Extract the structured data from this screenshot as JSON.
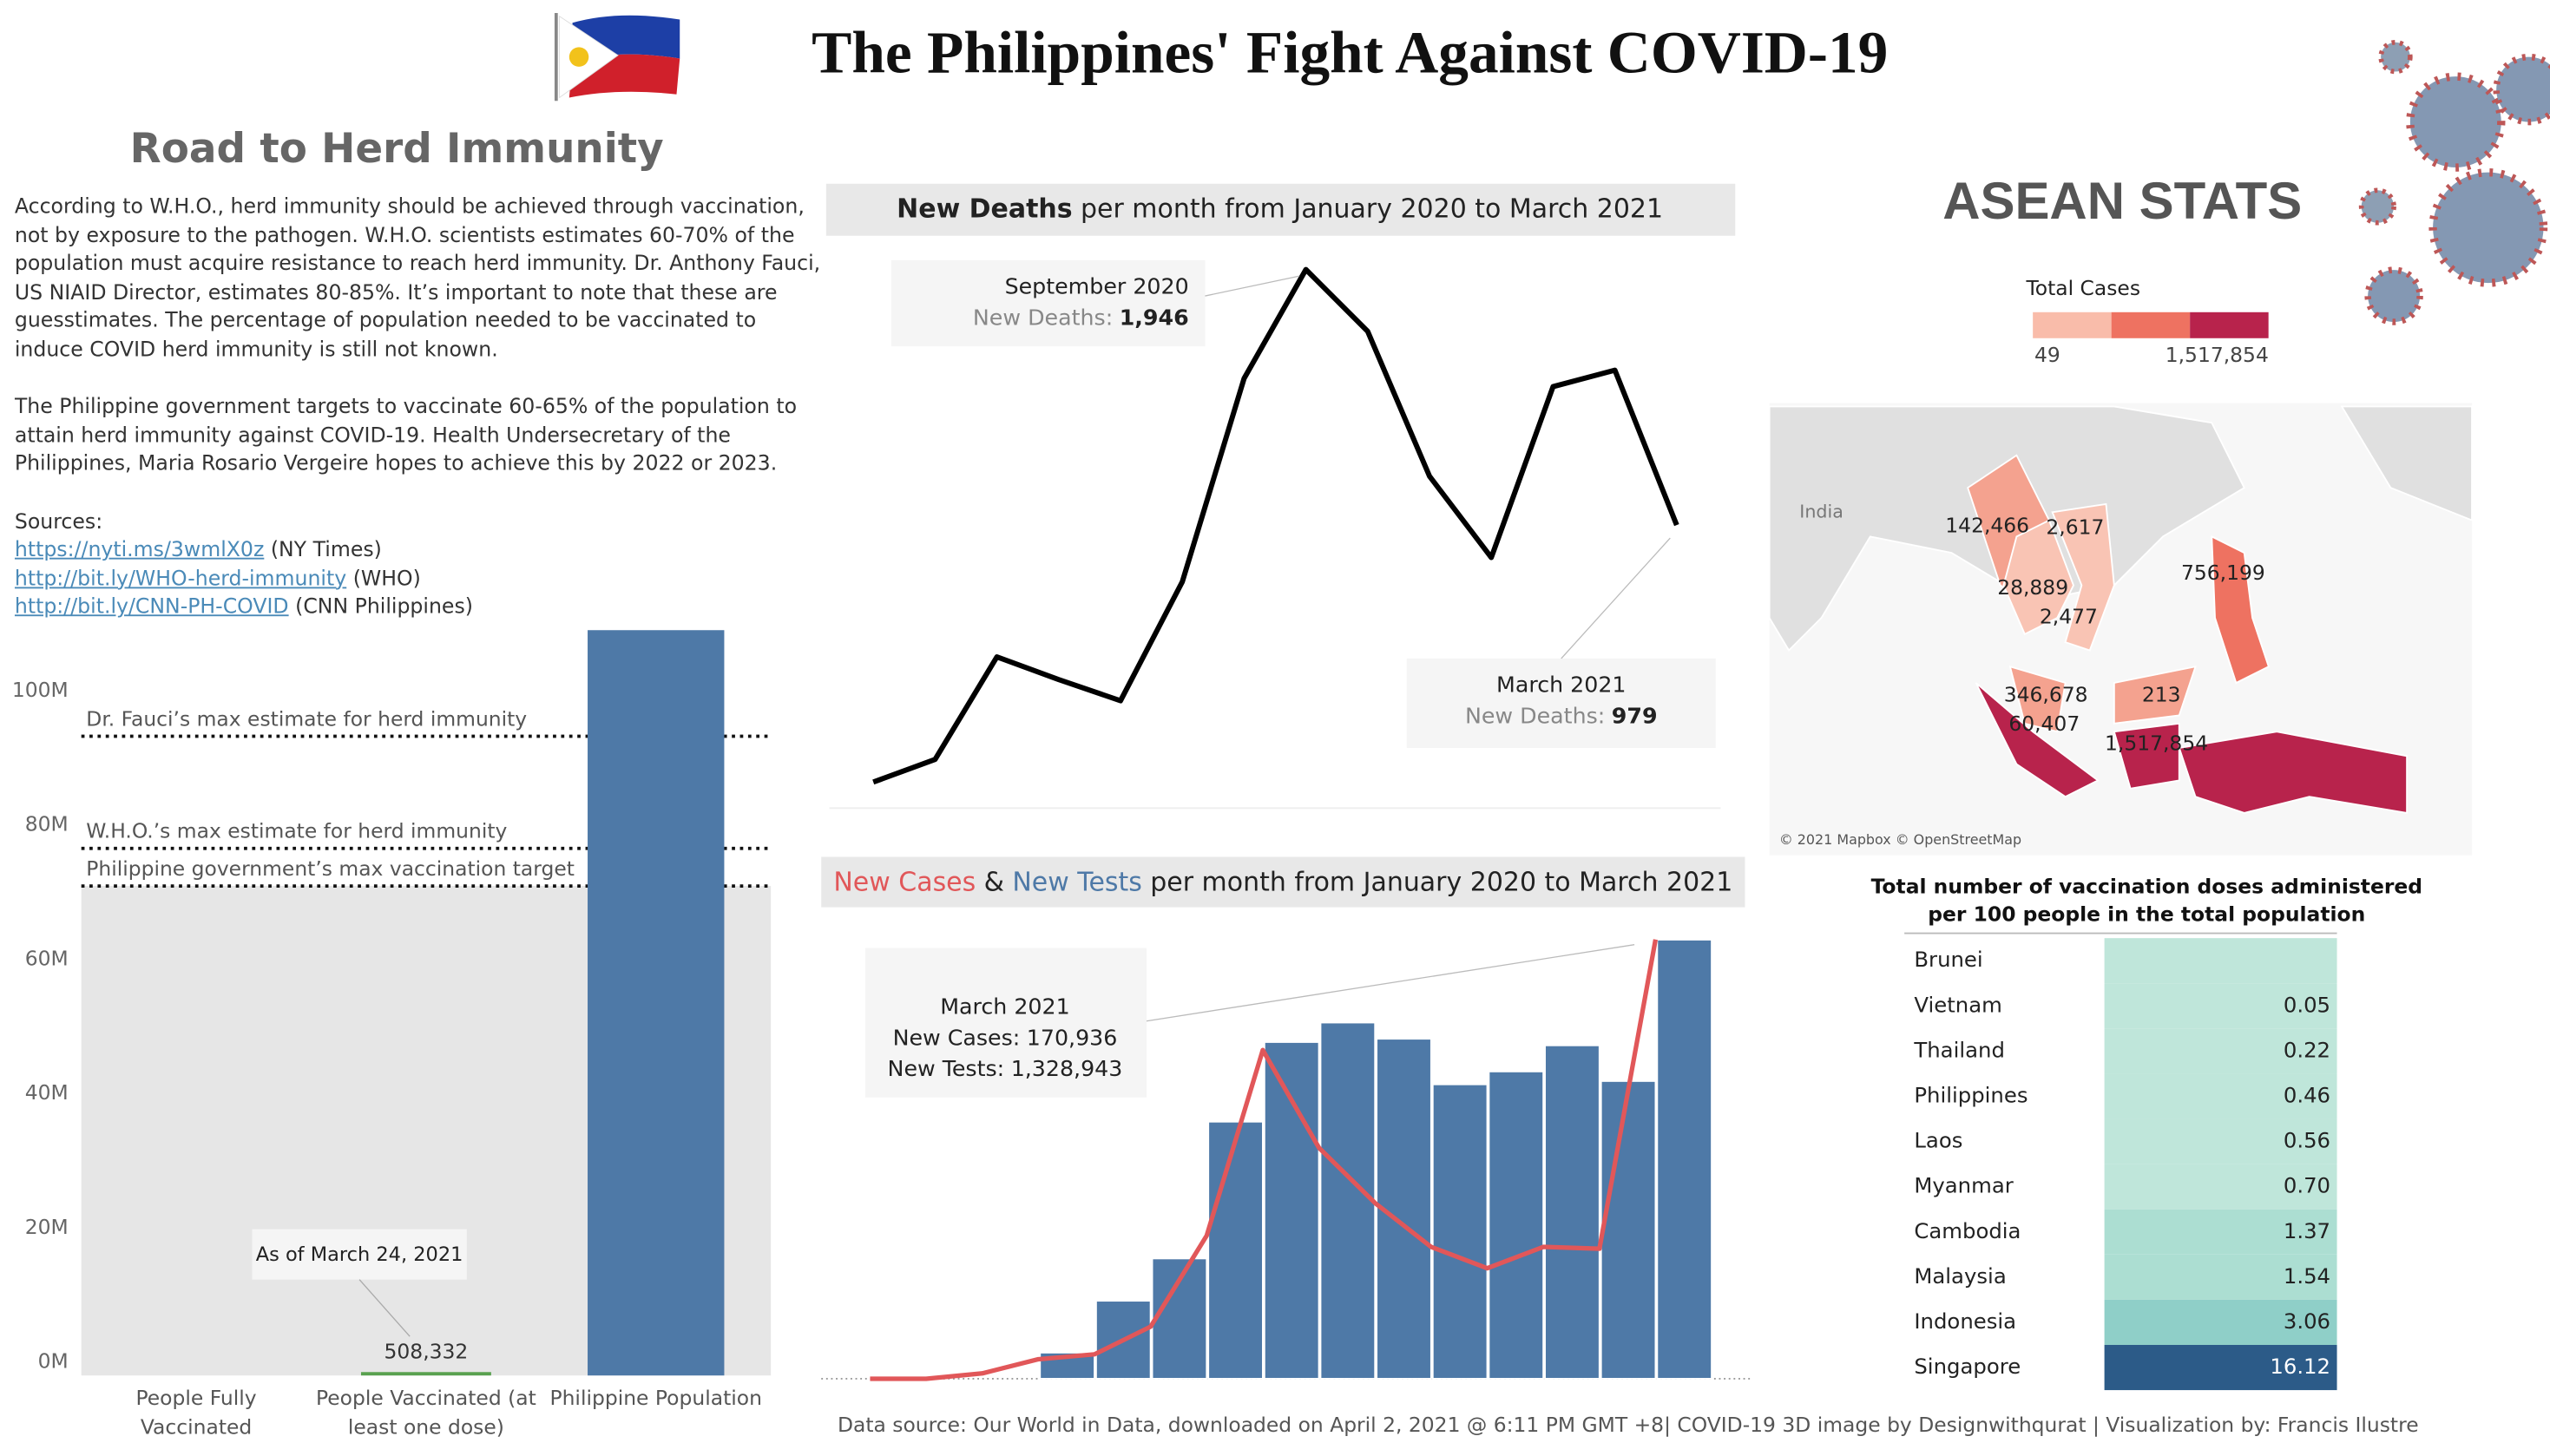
{
  "header": {
    "title": "The Philippines' Fight Against COVID-19"
  },
  "herd": {
    "title": "Road to Herd Immunity",
    "paragraphs": [
      "According to W.H.O., herd immunity should be achieved through vaccination, not by exposure to the pathogen. W.H.O. scientists estimates 60-70% of the population must acquire resistance to reach herd immunity. Dr. Anthony Fauci, US NIAID Director, estimates 80-85%. It’s important to note that these are guesstimates. The percentage of population needed to be vaccinated to induce COVID herd immunity is still not known.",
      "The Philippine government targets to vaccinate 60-65% of the population to attain herd immunity against COVID-19. Health Undersecretary of the Philippines, Maria Rosario Vergeire hopes to achieve this by 2022 or 2023."
    ],
    "sources_label": "Sources:",
    "sources": [
      {
        "url": "https://nyti.ms/3wmlX0z",
        "note": "(NY Times)"
      },
      {
        "url": "http://bit.ly/WHO-herd-immunity",
        "note": "(WHO)"
      },
      {
        "url": "http://bit.ly/CNN-PH-COVID",
        "note": "(CNN Philippines)"
      }
    ]
  },
  "asean": {
    "title": "ASEAN STATS",
    "legend_title": "Total Cases",
    "legend_min": "49",
    "legend_max": "1,517,854",
    "legend_colors": [
      "#f9bcaa",
      "#ee7261",
      "#b8234c"
    ],
    "place_label": "India",
    "credit": "© 2021 Mapbox © OpenStreetMap",
    "country_labels": [
      "142,466",
      "2,617",
      "28,889",
      "2,477",
      "756,199",
      "346,678",
      "213",
      "60,407",
      "1,517,854"
    ]
  },
  "footer": "Data source: Our World in Data, downloaded on April 2, 2021 @ 6:11 PM GMT +8| COVID-19 3D image by Designwithqurat | Visualization by: Francis Ilustre",
  "chart_data": [
    {
      "type": "bar",
      "categories": [
        "People Fully Vaccinated",
        "People Vaccinated (at least one dose)",
        "Philippine Population"
      ],
      "values": [
        0,
        508332,
        111000000
      ],
      "value_labels": [
        null,
        "508,332",
        null
      ],
      "colors": [
        "#59a14f",
        "#59a14f",
        "#4e79a7"
      ],
      "ylim": [
        0,
        112000000
      ],
      "yticks": [
        {
          "value": 0,
          "label": "0M"
        },
        {
          "value": 20000000,
          "label": "20M"
        },
        {
          "value": 40000000,
          "label": "40M"
        },
        {
          "value": 60000000,
          "label": "60M"
        },
        {
          "value": 80000000,
          "label": "80M"
        },
        {
          "value": 100000000,
          "label": "100M"
        }
      ],
      "reference_lines": [
        {
          "label": "Dr. Fauci’s max estimate for herd immunity",
          "value": 95200000
        },
        {
          "label": "W.H.O.’s max estimate for herd immunity",
          "value": 78500000
        },
        {
          "label": "Philippine government’s max vaccination target",
          "value": 72900000
        }
      ],
      "annotation": "As of March 24, 2021"
    },
    {
      "type": "line",
      "title": "per month from January 2020 to March 2021",
      "series": [
        {
          "name": "New Deaths",
          "color": "#000000",
          "values": [
            6,
            92,
            480,
            394,
            314,
            764,
            1534,
            1946,
            1712,
            1164,
            856,
            1503,
            1565,
            979
          ],
          "value_labels": [
            null,
            null,
            null,
            null,
            null,
            null,
            null,
            "1,946",
            null,
            null,
            null,
            null,
            null,
            "979"
          ]
        }
      ],
      "ylim": [
        0,
        2000
      ],
      "annotations": [
        {
          "heading": "September 2020",
          "label": "New Deaths:"
        },
        {
          "heading": "March 2021",
          "label": "New Deaths:"
        }
      ]
    },
    {
      "type": "combo",
      "title": "per month from January 2020 to March 2021",
      "title_joiner": "&",
      "series": [
        {
          "name": "New Cases",
          "color": "#e15759",
          "kind": "line",
          "axis": "y2",
          "values": [
            1,
            2,
            2084,
            7600,
            9500,
            20260,
            55700,
            127900,
            89900,
            68400,
            51300,
            43000,
            51300,
            50600,
            170936
          ],
          "value_labels": [
            null,
            null,
            null,
            null,
            null,
            null,
            null,
            null,
            null,
            null,
            null,
            null,
            null,
            null,
            "170,936"
          ]
        },
        {
          "name": "New Tests",
          "color": "#4e79a7",
          "kind": "bar",
          "values": [
            null,
            null,
            null,
            79000,
            236000,
            364000,
            778000,
            1019000,
            1078000,
            1029000,
            891000,
            930000,
            1009000,
            901000,
            1328943
          ],
          "value_labels": [
            null,
            null,
            null,
            null,
            null,
            null,
            null,
            null,
            null,
            null,
            null,
            null,
            null,
            null,
            "1,328,943"
          ]
        }
      ],
      "ylim": [
        0,
        1400000
      ],
      "y2lim": [
        0,
        180000
      ],
      "annotation": {
        "heading": "March 2021",
        "labels": [
          "New Cases:",
          "New Tests:"
        ]
      }
    },
    {
      "type": "table",
      "title_lines": [
        "Total number of vaccination doses administered",
        "per 100 people in the total population"
      ],
      "categories": [
        "Brunei",
        "Vietnam",
        "Thailand",
        "Philippines",
        "Laos",
        "Myanmar",
        "Cambodia",
        "Malaysia",
        "Indonesia",
        "Singapore"
      ],
      "values": [
        null,
        0.05,
        0.22,
        0.46,
        0.56,
        0.7,
        1.37,
        1.54,
        3.06,
        16.12
      ],
      "value_labels": [
        null,
        "0.05",
        "0.22",
        "0.46",
        "0.56",
        "0.70",
        "1.37",
        "1.54",
        "3.06",
        "16.12"
      ],
      "colors": [
        "#bfe6da",
        "#bfe6da",
        "#bfe6da",
        "#bfe6da",
        "#bfe6da",
        "#bfe6da",
        "#acded2",
        "#acded2",
        "#8fcfc8",
        "#2c5b88"
      ]
    }
  ]
}
